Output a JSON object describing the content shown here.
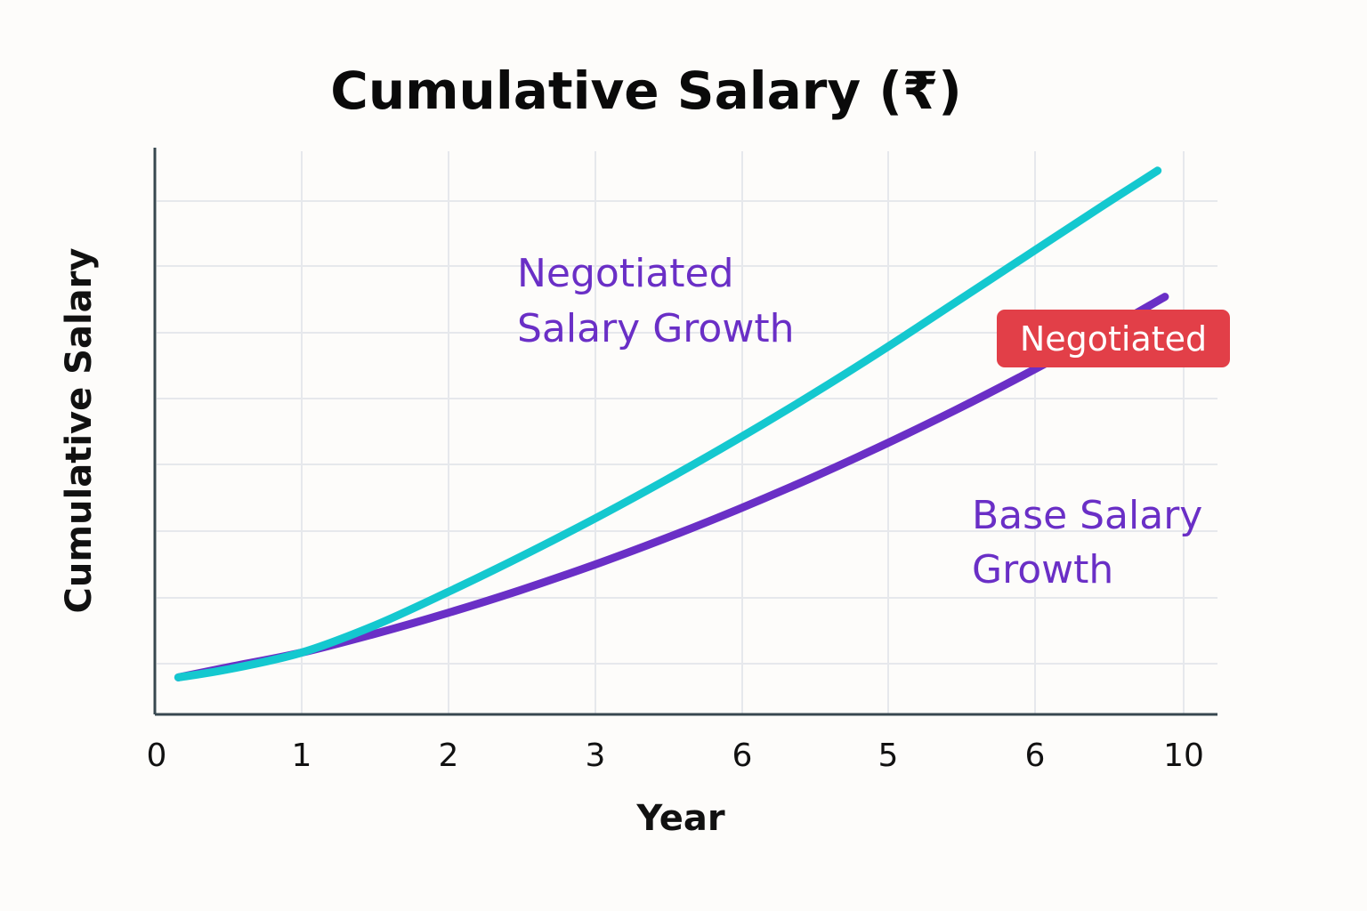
{
  "chart_data": {
    "type": "line",
    "title": "Cumulative Salary (₹)",
    "xlabel": "Year",
    "ylabel": "Cumulative Salary",
    "x_ticks": [
      "0",
      "1",
      "2",
      "3",
      "6",
      "5",
      "6",
      "10"
    ],
    "y_ticks": [],
    "grid": true,
    "series": [
      {
        "key": "negotiated",
        "color": "#14c8cf",
        "x": [
          0.15,
          0.5,
          1,
          1.5,
          2,
          2.5,
          3,
          3.5,
          4,
          4.5,
          5,
          5.5,
          6,
          6.5,
          6.9
        ],
        "y": [
          0.4,
          0.6,
          1.0,
          1.65,
          2.45,
          3.3,
          4.2,
          5.15,
          6.15,
          7.2,
          8.3,
          9.45,
          10.6,
          11.75,
          12.65
        ]
      },
      {
        "key": "base",
        "color": "#6a2fc6",
        "x": [
          0.15,
          0.5,
          1,
          1.5,
          2,
          2.5,
          3,
          3.5,
          4,
          4.5,
          5,
          5.5,
          6,
          6.5,
          6.95
        ],
        "y": [
          0.4,
          0.65,
          1.0,
          1.45,
          1.95,
          2.5,
          3.1,
          3.75,
          4.45,
          5.2,
          6.0,
          6.85,
          7.75,
          8.7,
          9.6
        ]
      }
    ],
    "annotations": [
      {
        "key": "neg_label",
        "lines": [
          "Negotiated",
          "Salary Growth"
        ],
        "color": "#6a2fc6"
      },
      {
        "key": "base_label",
        "lines": [
          "Base Salary",
          "Growth"
        ],
        "color": "#6a2fc6"
      },
      {
        "key": "badge",
        "text": "Negotiated",
        "color": "#e23f48"
      }
    ]
  }
}
